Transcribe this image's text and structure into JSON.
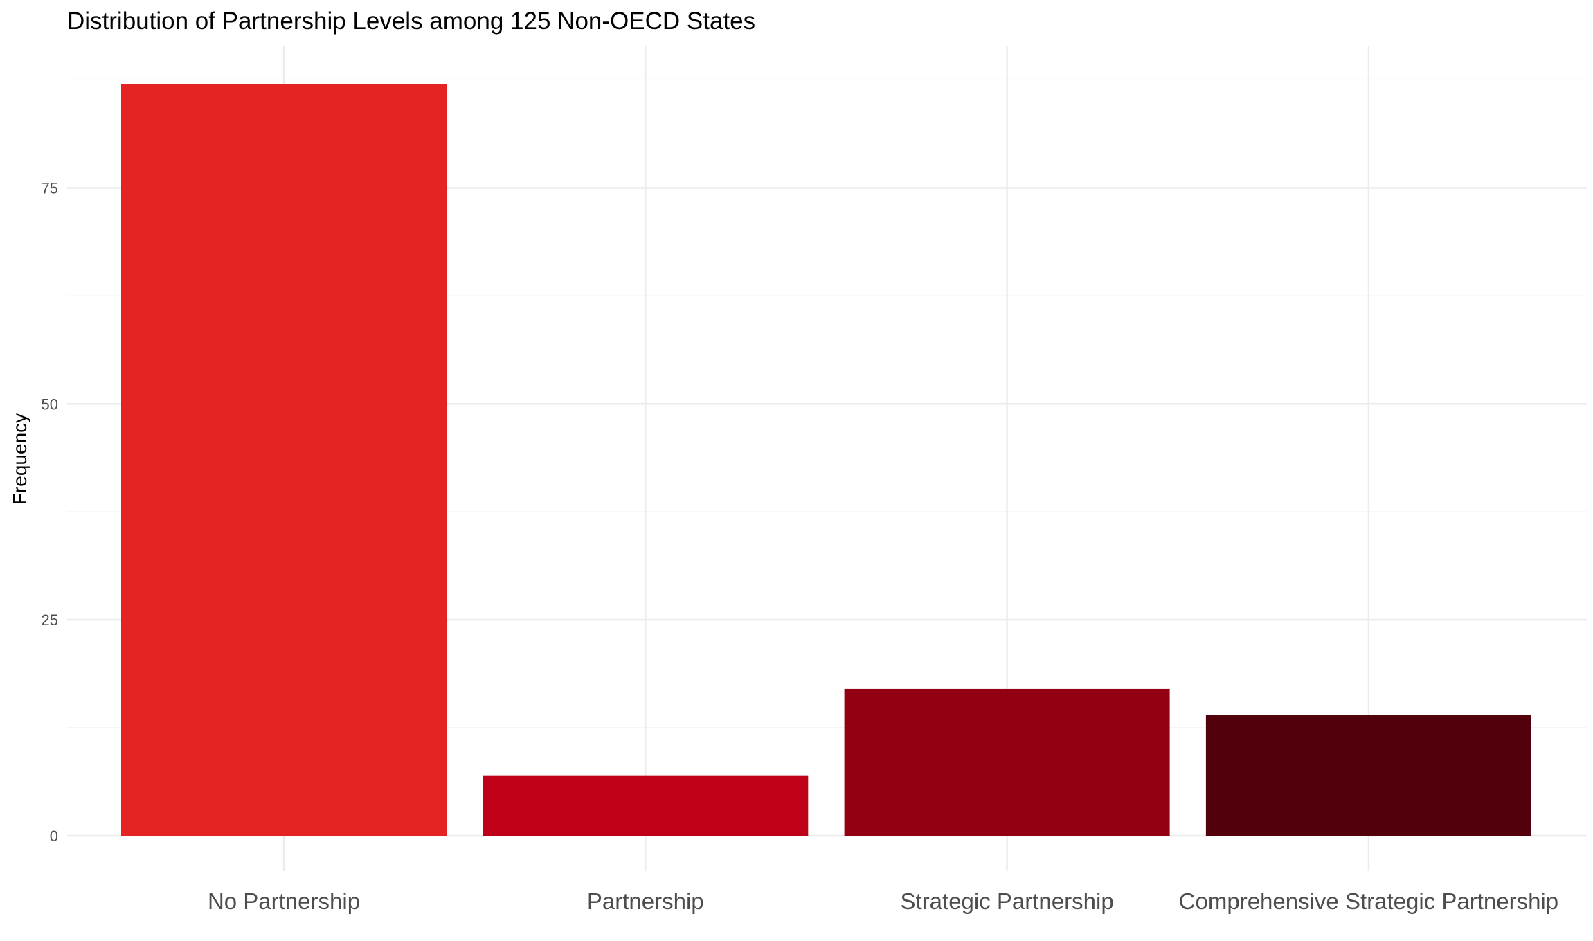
{
  "chart_data": {
    "type": "bar",
    "title": "Distribution of Partnership Levels among 125 Non-OECD States",
    "xlabel": "",
    "ylabel": "Frequency",
    "categories": [
      "No Partnership",
      "Partnership",
      "Strategic Partnership",
      "Comprehensive Strategic Partnership"
    ],
    "values": [
      87,
      7,
      17,
      14
    ],
    "colors": [
      "#E62323",
      "#BE0019",
      "#930012",
      "#52000C"
    ],
    "yticks": [
      0,
      25,
      50,
      75
    ],
    "ylim": [
      0,
      91
    ],
    "grid": true,
    "legend": "none"
  }
}
